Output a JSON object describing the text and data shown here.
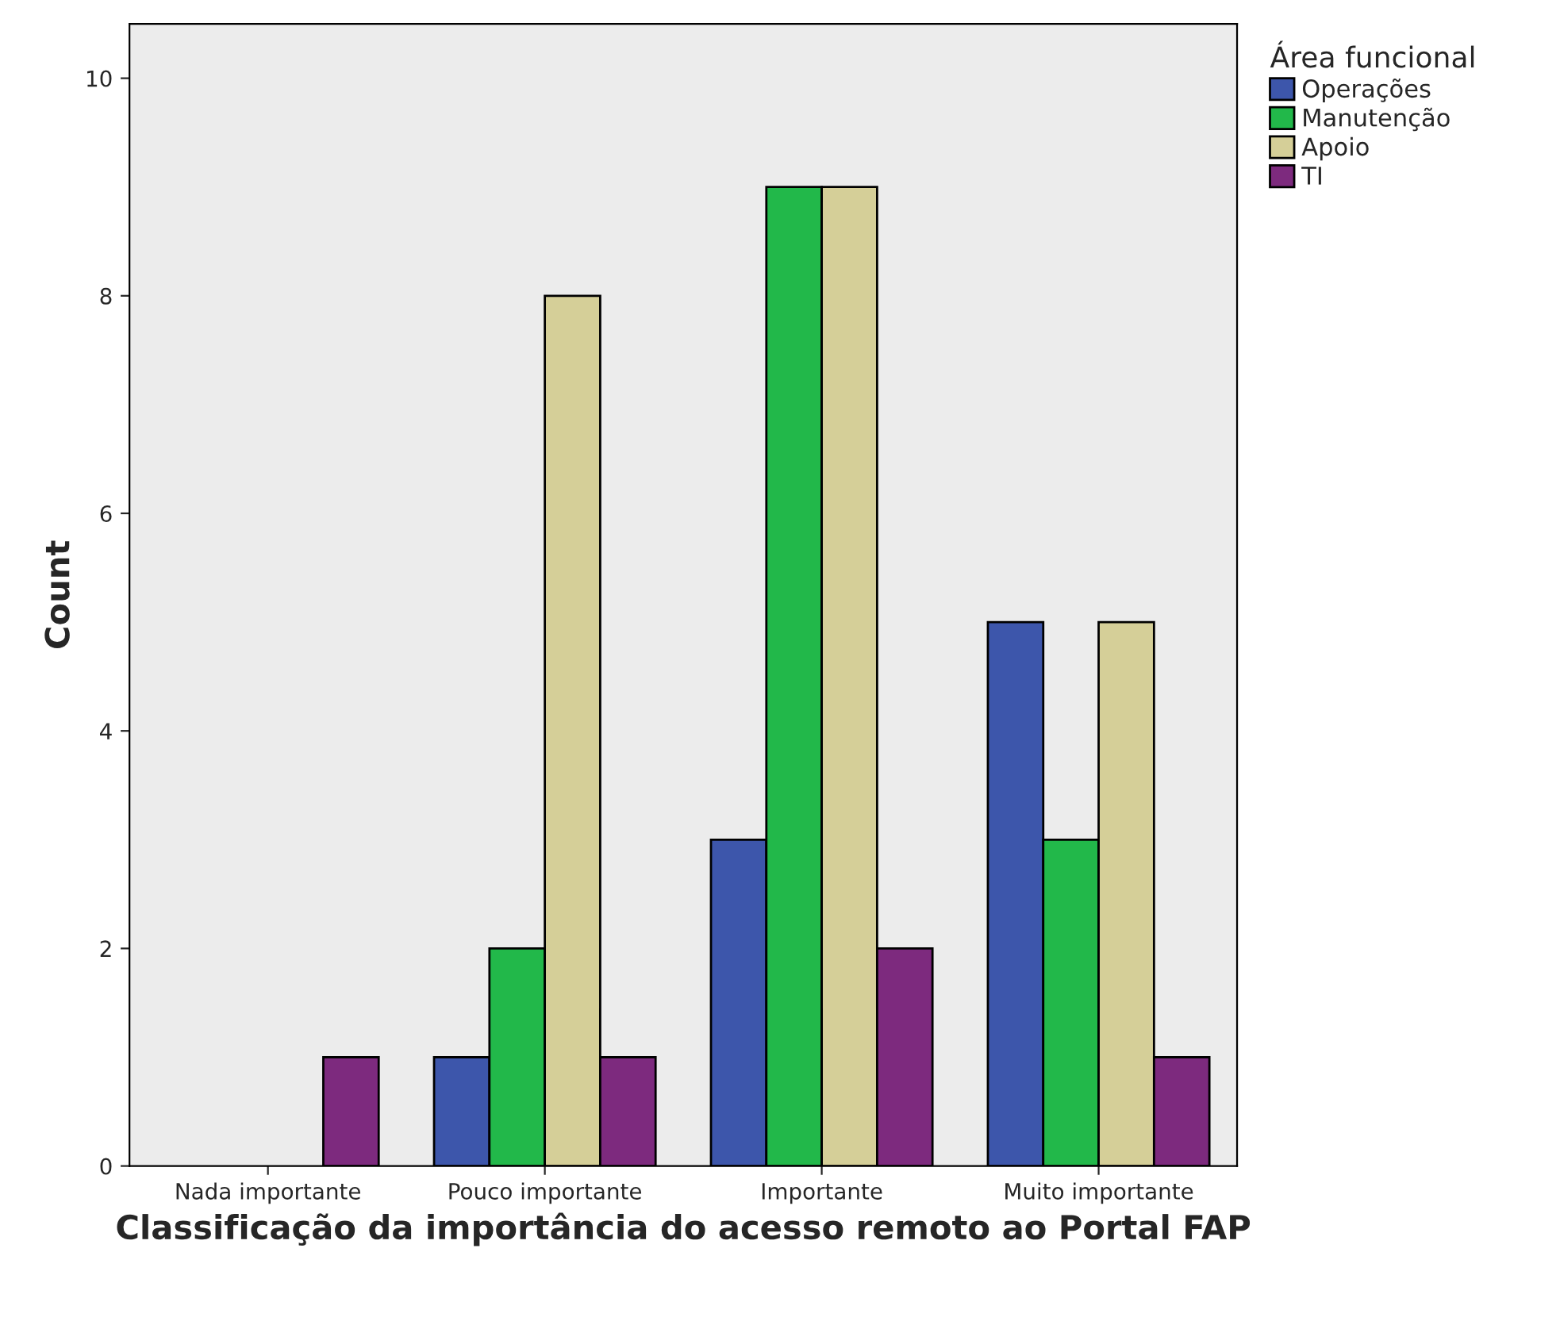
{
  "chart_data": {
    "type": "bar",
    "xlabel": "Classificação da importância do acesso remoto ao Portal FAP",
    "ylabel": "Count",
    "legend_title": "Área funcional",
    "categories": [
      "Nada importante",
      "Pouco importante",
      "Importante",
      "Muito importante"
    ],
    "series": [
      {
        "name": "Operações",
        "color": "#3d56ab",
        "values": [
          null,
          1,
          3,
          5
        ]
      },
      {
        "name": "Manutenção",
        "color": "#22b84a",
        "values": [
          null,
          2,
          9,
          3
        ]
      },
      {
        "name": "Apoio",
        "color": "#d5cf98",
        "values": [
          null,
          8,
          9,
          5
        ]
      },
      {
        "name": "TI",
        "color": "#7d2a7e",
        "values": [
          1,
          1,
          2,
          1
        ]
      }
    ],
    "ylim": [
      0,
      10.5
    ],
    "yticks": [
      0,
      2,
      4,
      6,
      8,
      10
    ],
    "grid": false,
    "legend": "top right"
  }
}
